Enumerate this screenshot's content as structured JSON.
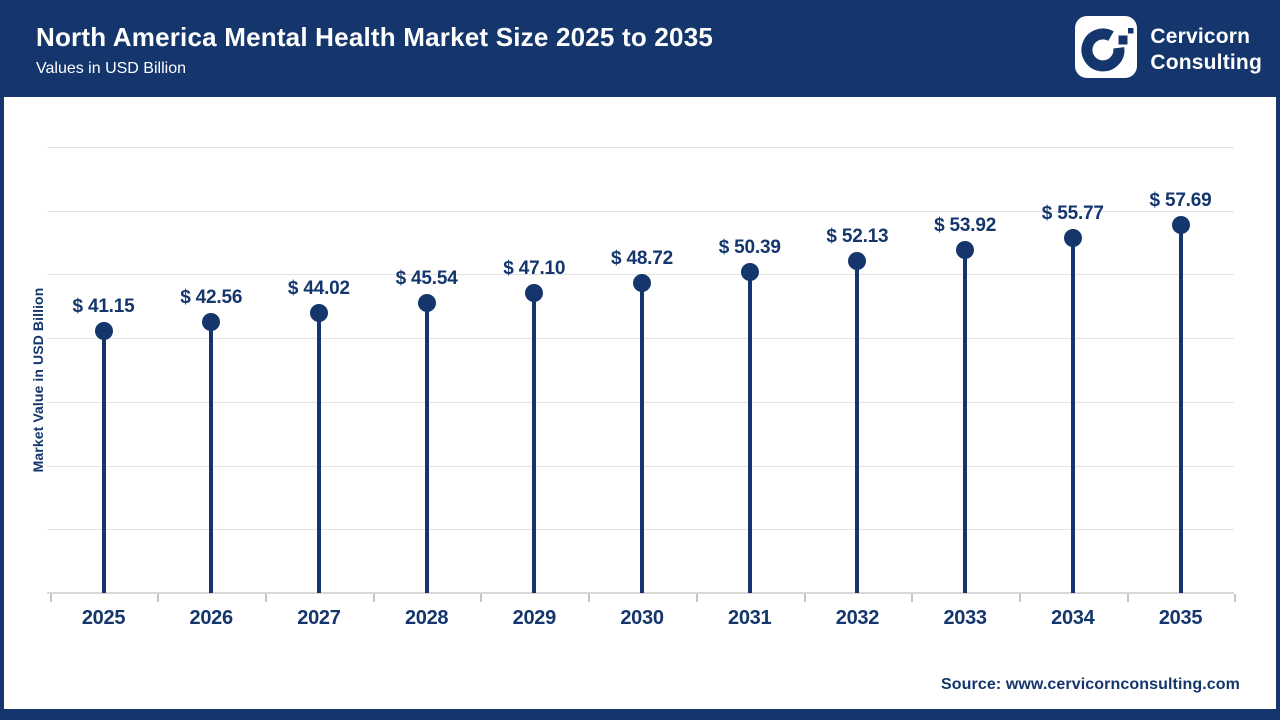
{
  "header": {
    "title": "North America Mental Health Market Size 2025 to 2035",
    "subtitle": "Values in USD Billion",
    "brand": {
      "line1": "Cervicorn",
      "line2": "Consulting"
    }
  },
  "chart_data": {
    "type": "bar",
    "variant": "lollipop",
    "title": "North America Mental Health Market Size 2025 to 2035",
    "subtitle": "Values in USD Billion",
    "categories": [
      "2025",
      "2026",
      "2027",
      "2028",
      "2029",
      "2030",
      "2031",
      "2032",
      "2033",
      "2034",
      "2035"
    ],
    "values": [
      41.15,
      42.56,
      44.02,
      45.54,
      47.1,
      48.72,
      50.39,
      52.13,
      53.92,
      55.77,
      57.69
    ],
    "value_prefix": "$ ",
    "xlabel": "",
    "ylabel": "Market Value in USD Billion",
    "ylim": [
      0,
      70
    ],
    "grid_step": 10,
    "grid": "horizontal-only",
    "legend": "none",
    "y_tick_labels_visible": false
  },
  "footer": {
    "source": "Source: www.cervicornconsulting.com"
  },
  "colors": {
    "navy": "#14366d",
    "gridline": "#e4e4e4",
    "axis_line": "#d8d8d8",
    "background": "#ffffff",
    "text_on_navy": "#ffffff"
  }
}
